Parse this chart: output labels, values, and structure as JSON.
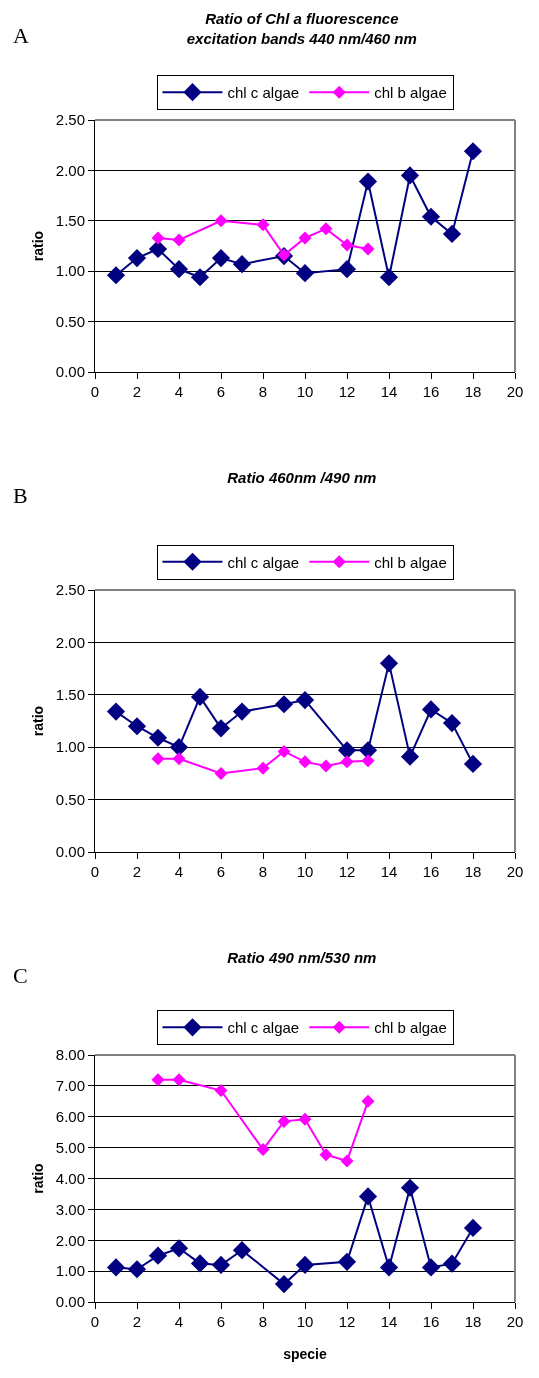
{
  "chart_data": [
    {
      "type": "line",
      "title": "Ratio of Chl a fluorescence\nexcitation bands 440 nm/460 nm",
      "ylabel": "ratio",
      "annotations": [
        "A"
      ],
      "marker": "diamond",
      "grid": "y",
      "legend": "top",
      "xlim": [
        0,
        20
      ],
      "xticks": [
        0,
        2,
        4,
        6,
        8,
        10,
        12,
        14,
        16,
        18,
        20
      ],
      "ylim": [
        0,
        2.5
      ],
      "yticks": [
        {
          "value": 0,
          "label": "0.00"
        },
        {
          "value": 0.5,
          "label": "0.50"
        },
        {
          "value": 1,
          "label": "1.00"
        },
        {
          "value": 1.5,
          "label": "1.50"
        },
        {
          "value": 2,
          "label": "2.00"
        },
        {
          "value": 2.5,
          "label": "2.50"
        }
      ],
      "series": [
        {
          "name": "chl c algae",
          "color": "#000080",
          "x": [
            1,
            2,
            3,
            4,
            5,
            6,
            7,
            9,
            10,
            12,
            13,
            14,
            15,
            16,
            17,
            18
          ],
          "values": [
            0.96,
            1.13,
            1.22,
            1.02,
            0.94,
            1.13,
            1.07,
            1.15,
            0.98,
            1.02,
            1.89,
            0.94,
            1.95,
            1.54,
            1.37,
            2.19
          ]
        },
        {
          "name": "chl b algae",
          "color": "#ff00ff",
          "x": [
            3,
            4,
            6,
            8,
            9,
            10,
            11,
            12,
            13
          ],
          "values": [
            1.33,
            1.31,
            1.5,
            1.46,
            1.16,
            1.33,
            1.42,
            1.26,
            1.22
          ]
        }
      ]
    },
    {
      "type": "line",
      "title": "Ratio 460nm /490 nm",
      "ylabel": "ratio",
      "annotations": [
        "B"
      ],
      "marker": "diamond",
      "grid": "y",
      "legend": "top",
      "xlim": [
        0,
        20
      ],
      "xticks": [
        0,
        2,
        4,
        6,
        8,
        10,
        12,
        14,
        16,
        18,
        20
      ],
      "ylim": [
        0,
        2.5
      ],
      "yticks": [
        {
          "value": 0,
          "label": "0.00"
        },
        {
          "value": 0.5,
          "label": "0.50"
        },
        {
          "value": 1,
          "label": "1.00"
        },
        {
          "value": 1.5,
          "label": "1.50"
        },
        {
          "value": 2,
          "label": "2.00"
        },
        {
          "value": 2.5,
          "label": "2.50"
        }
      ],
      "series": [
        {
          "name": "chl c algae",
          "color": "#000080",
          "x": [
            1,
            2,
            3,
            4,
            5,
            6,
            7,
            9,
            10,
            12,
            13,
            14,
            15,
            16,
            17,
            18
          ],
          "values": [
            1.34,
            1.2,
            1.09,
            1.0,
            1.48,
            1.18,
            1.34,
            1.41,
            1.45,
            0.97,
            0.97,
            1.8,
            0.91,
            1.36,
            1.23,
            0.84
          ]
        },
        {
          "name": "chl b algae",
          "color": "#ff00ff",
          "x": [
            3,
            4,
            6,
            8,
            9,
            10,
            11,
            12,
            13
          ],
          "values": [
            0.89,
            0.89,
            0.75,
            0.8,
            0.96,
            0.86,
            0.82,
            0.86,
            0.87
          ]
        }
      ]
    },
    {
      "type": "line",
      "title": "Ratio 490 nm/530 nm",
      "xlabel": "specie",
      "ylabel": "ratio",
      "annotations": [
        "C"
      ],
      "marker": "diamond",
      "grid": "y",
      "legend": "top",
      "xlim": [
        0,
        20
      ],
      "xticks": [
        0,
        2,
        4,
        6,
        8,
        10,
        12,
        14,
        16,
        18,
        20
      ],
      "ylim": [
        0,
        8
      ],
      "yticks": [
        {
          "value": 0,
          "label": "0.00"
        },
        {
          "value": 1,
          "label": "1.00"
        },
        {
          "value": 2,
          "label": "2.00"
        },
        {
          "value": 3,
          "label": "3.00"
        },
        {
          "value": 4,
          "label": "4.00"
        },
        {
          "value": 5,
          "label": "5.00"
        },
        {
          "value": 6,
          "label": "6.00"
        },
        {
          "value": 7,
          "label": "7.00"
        },
        {
          "value": 8,
          "label": "8.00"
        }
      ],
      "series": [
        {
          "name": "chl c algae",
          "color": "#000080",
          "x": [
            1,
            2,
            3,
            4,
            5,
            6,
            7,
            9,
            10,
            12,
            13,
            14,
            15,
            16,
            17,
            18
          ],
          "values": [
            1.12,
            1.06,
            1.5,
            1.74,
            1.25,
            1.2,
            1.68,
            0.58,
            1.2,
            1.3,
            3.42,
            1.12,
            3.7,
            1.12,
            1.24,
            2.4
          ]
        },
        {
          "name": "chl b algae",
          "color": "#ff00ff",
          "x": [
            3,
            4,
            6,
            8,
            9,
            10,
            11,
            12,
            13
          ],
          "values": [
            7.2,
            7.2,
            6.85,
            4.94,
            5.85,
            5.92,
            4.77,
            4.57,
            6.5
          ]
        }
      ]
    }
  ]
}
